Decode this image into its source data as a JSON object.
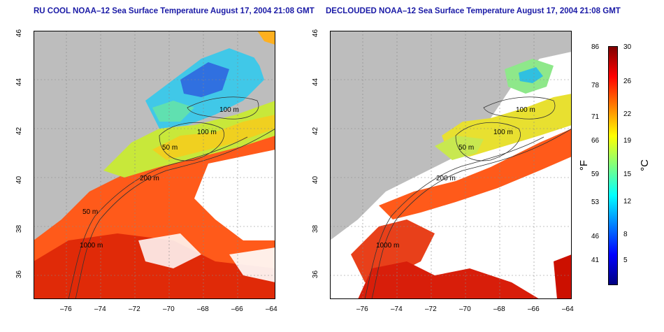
{
  "maps": [
    {
      "id": "left",
      "title": "RU COOL NOAA–12 Sea Surface Temperature August 17, 2004 21:08 GMT",
      "contours": [
        "100 m",
        "100 m",
        "50 m",
        "200 m",
        "50 m",
        "1000 m"
      ]
    },
    {
      "id": "right",
      "title": "DECLOUDED NOAA–12 Sea Surface Temperature August 17, 2004 21:08 GMT",
      "contours": [
        "100 m",
        "100 m",
        "50 m",
        "200 m",
        "1000 m"
      ]
    }
  ],
  "axes": {
    "x_ticks": [
      "–76",
      "–74",
      "–72",
      "–70",
      "–68",
      "–66",
      "–64"
    ],
    "y_ticks": [
      "46",
      "44",
      "42",
      "40",
      "38",
      "36"
    ]
  },
  "colorbar": {
    "fahrenheit_ticks": [
      "86",
      "78",
      "71",
      "66",
      "59",
      "53",
      "46",
      "41"
    ],
    "celsius_ticks": [
      "30",
      "26",
      "22",
      "19",
      "15",
      "12",
      "8",
      "5"
    ],
    "unit_f": "°F",
    "unit_c": "°C",
    "colors": [
      "#00007f",
      "#0000ff",
      "#007fff",
      "#00ffff",
      "#7fff7f",
      "#ffff00",
      "#ff7f00",
      "#ff0000",
      "#7f0000"
    ]
  },
  "colors": {
    "land": "#bdbdbd",
    "cloud_mask": "#ffffff",
    "title": "#1a1aa6"
  }
}
